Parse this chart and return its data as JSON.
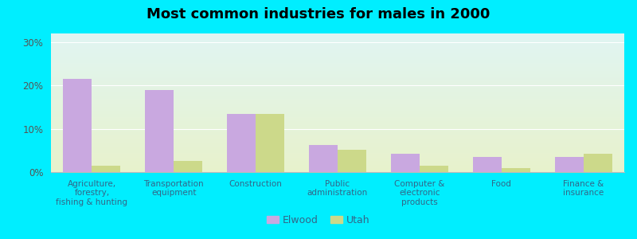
{
  "title": "Most common industries for males in 2000",
  "categories": [
    "Agriculture,\nforestry,\nfishing & hunting",
    "Transportation\nequipment",
    "Construction",
    "Public\nadministration",
    "Computer &\nelectronic\nproducts",
    "Food",
    "Finance &\ninsurance"
  ],
  "elwood_values": [
    21.5,
    19.0,
    13.5,
    6.2,
    4.2,
    3.5,
    3.5
  ],
  "utah_values": [
    1.5,
    2.5,
    13.5,
    5.2,
    1.5,
    1.0,
    4.2
  ],
  "elwood_color": "#c9a8e0",
  "utah_color": "#ccd98a",
  "background_outer": "#00eeff",
  "yticks": [
    0,
    10,
    20,
    30
  ],
  "ylim": [
    0,
    32
  ],
  "legend_labels": [
    "Elwood",
    "Utah"
  ],
  "bar_width": 0.35
}
